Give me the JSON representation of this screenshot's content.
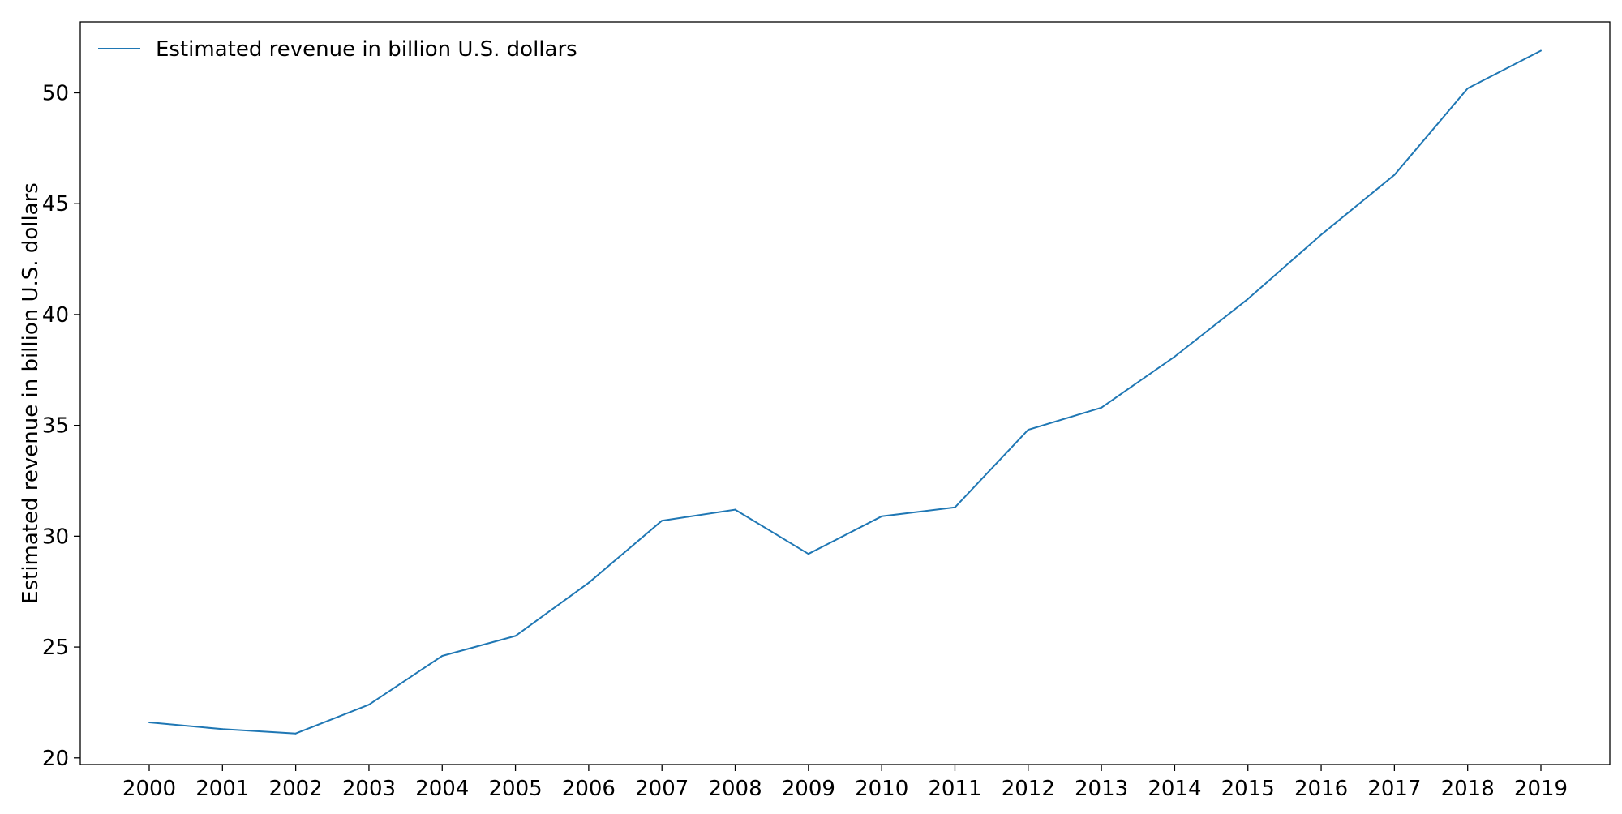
{
  "chart_data": {
    "type": "line",
    "title": "",
    "xlabel": "",
    "ylabel": "Estimated revenue in billion U.S. dollars",
    "x": [
      "2000",
      "2001",
      "2002",
      "2003",
      "2004",
      "2005",
      "2006",
      "2007",
      "2008",
      "2009",
      "2010",
      "2011",
      "2012",
      "2013",
      "2014",
      "2015",
      "2016",
      "2017",
      "2018",
      "2019"
    ],
    "series": [
      {
        "name": "Estimated revenue in billion U.S. dollars",
        "color": "#1f77b4",
        "values": [
          21.6,
          21.3,
          21.1,
          22.4,
          24.6,
          25.5,
          27.9,
          30.7,
          31.2,
          29.2,
          30.9,
          31.3,
          34.8,
          35.8,
          38.1,
          40.7,
          43.6,
          46.3,
          50.2,
          51.9
        ]
      }
    ],
    "ylim": [
      19.7,
      53.2
    ],
    "yticks": [
      20,
      25,
      30,
      35,
      40,
      45,
      50
    ],
    "grid": false,
    "legend_position": "top-left"
  }
}
